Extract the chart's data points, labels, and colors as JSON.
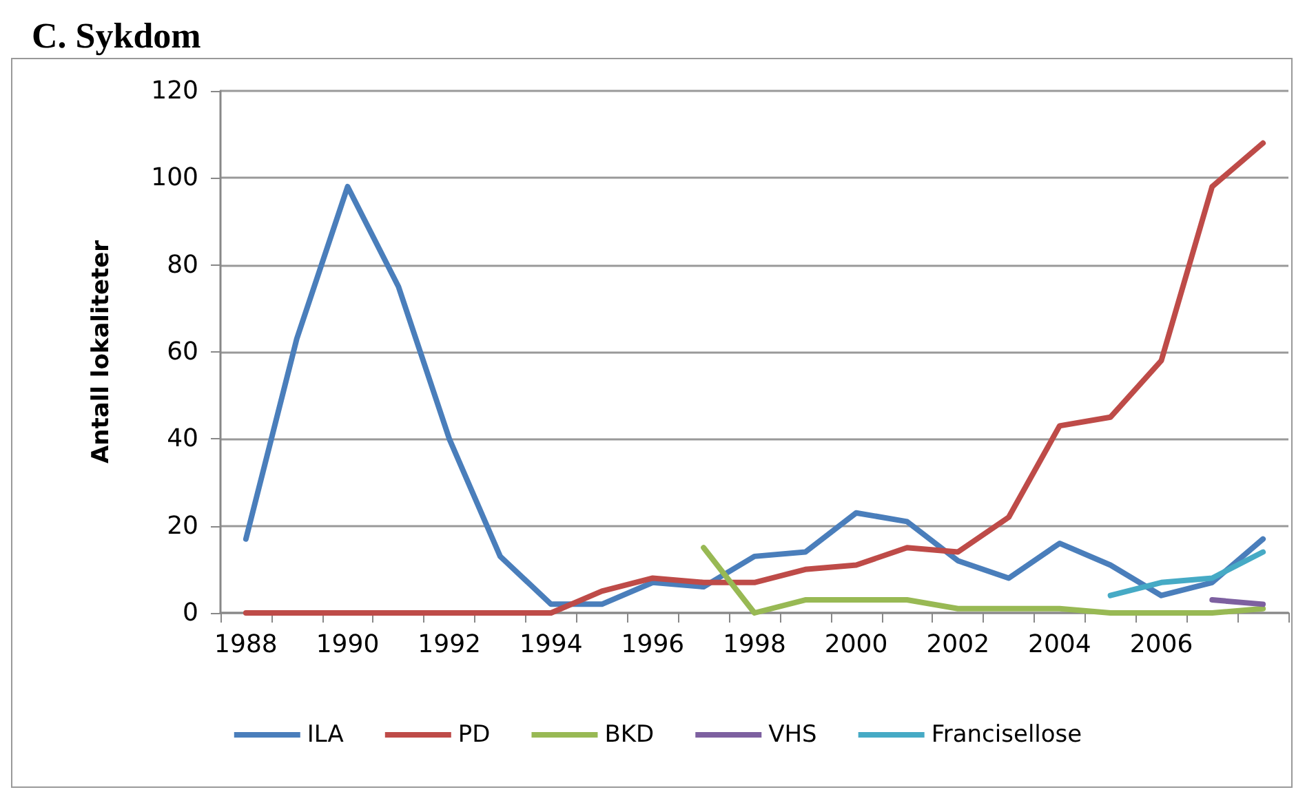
{
  "chart_data": {
    "type": "line",
    "title": "C. Sykdom",
    "ylabel": "Antall lokaliteter",
    "categories": [
      "1988",
      null,
      "1990",
      null,
      "1992",
      null,
      "1994",
      null,
      "1996",
      null,
      "1998",
      null,
      "2000",
      null,
      "2002",
      null,
      "2004",
      null,
      "2006",
      null,
      null
    ],
    "series": [
      {
        "name": "ILA",
        "color": "#4a7ebb",
        "values": [
          17,
          63,
          98,
          75,
          40,
          13,
          2,
          2,
          7,
          6,
          13,
          14,
          23,
          21,
          12,
          8,
          16,
          11,
          4,
          7,
          17
        ]
      },
      {
        "name": "PD",
        "color": "#be4b48",
        "values": [
          0,
          0,
          0,
          0,
          0,
          0,
          0,
          5,
          8,
          7,
          7,
          10,
          11,
          15,
          14,
          22,
          43,
          45,
          58,
          98,
          108
        ]
      },
      {
        "name": "BKD",
        "color": "#98b954",
        "values": [
          null,
          null,
          null,
          null,
          null,
          null,
          null,
          null,
          null,
          15,
          0,
          3,
          3,
          3,
          1,
          1,
          1,
          0,
          0,
          0,
          1
        ]
      },
      {
        "name": "VHS",
        "color": "#7d60a0",
        "values": [
          null,
          null,
          null,
          null,
          null,
          null,
          null,
          null,
          null,
          null,
          null,
          null,
          null,
          null,
          null,
          null,
          null,
          null,
          null,
          3,
          2
        ]
      },
      {
        "name": "Francisellose",
        "color": "#46aac5",
        "values": [
          null,
          null,
          null,
          null,
          null,
          null,
          null,
          null,
          null,
          null,
          null,
          null,
          null,
          null,
          null,
          null,
          null,
          4,
          7,
          8,
          14
        ]
      }
    ],
    "ylim": [
      0,
      120
    ],
    "yticks": [
      0,
      20,
      40,
      60,
      80,
      100,
      120
    ],
    "grid": "y",
    "legend": "bottom",
    "marker": "none",
    "line_style": "solid"
  }
}
